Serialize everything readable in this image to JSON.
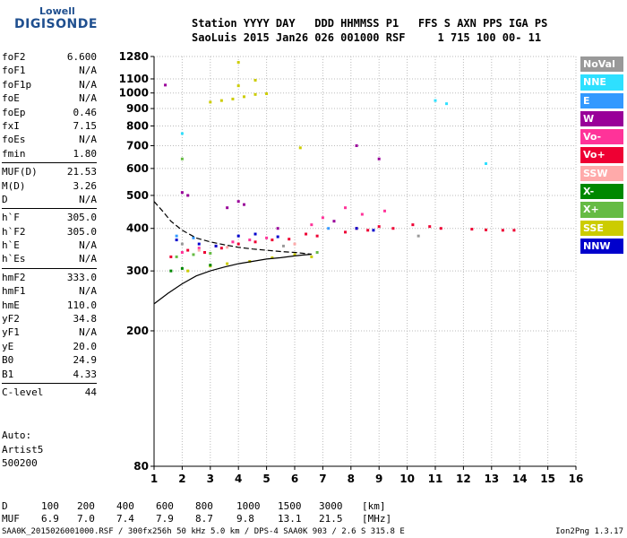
{
  "logo": {
    "line1": "Lowell",
    "line2": "DIGISONDE"
  },
  "header": {
    "line1": "Station YYYY DAY   DDD HHMMSS P1   FFS S AXN PPS IGA PS",
    "line2": "SaoLuis 2015 Jan26 026 001000 RSF     1 715 100 00- 11"
  },
  "params": {
    "group1": [
      {
        "label": "foF2",
        "value": "6.600"
      },
      {
        "label": "foF1",
        "value": "N/A"
      },
      {
        "label": "foF1p",
        "value": "N/A"
      },
      {
        "label": "foE",
        "value": "N/A"
      },
      {
        "label": "foEp",
        "value": "0.46"
      },
      {
        "label": "fxI",
        "value": "7.15"
      },
      {
        "label": "foEs",
        "value": "N/A"
      },
      {
        "label": "fmin",
        "value": "1.80"
      }
    ],
    "group2": [
      {
        "label": "MUF(D)",
        "value": "21.53"
      },
      {
        "label": "M(D)",
        "value": "3.26"
      },
      {
        "label": "D",
        "value": "N/A"
      }
    ],
    "group3": [
      {
        "label": "h`F",
        "value": "305.0"
      },
      {
        "label": "h`F2",
        "value": "305.0"
      },
      {
        "label": "h`E",
        "value": "N/A"
      },
      {
        "label": "h`Es",
        "value": "N/A"
      }
    ],
    "group4": [
      {
        "label": "hmF2",
        "value": "333.0"
      },
      {
        "label": "hmF1",
        "value": "N/A"
      },
      {
        "label": "hmE",
        "value": "110.0"
      },
      {
        "label": "yF2",
        "value": "34.8"
      },
      {
        "label": "yF1",
        "value": "N/A"
      },
      {
        "label": "yE",
        "value": "20.0"
      },
      {
        "label": "B0",
        "value": "24.9"
      },
      {
        "label": "B1",
        "value": "4.33"
      }
    ],
    "group5": [
      {
        "label": "C-level",
        "value": "44"
      }
    ]
  },
  "auto": {
    "line1": "Auto:",
    "line2": "Artist5",
    "line3": "500200"
  },
  "legend": [
    {
      "label": "NoVal",
      "color": "#999999"
    },
    {
      "label": "NNE",
      "color": "#2ee0ff"
    },
    {
      "label": "E",
      "color": "#3399ff"
    },
    {
      "label": "W",
      "color": "#990099"
    },
    {
      "label": "Vo-",
      "color": "#ff3399"
    },
    {
      "label": "Vo+",
      "color": "#ee0033"
    },
    {
      "label": "SSW",
      "color": "#ffaaaa"
    },
    {
      "label": "X-",
      "color": "#008800"
    },
    {
      "label": "X+",
      "color": "#66bb44"
    },
    {
      "label": "SSE",
      "color": "#cccc00"
    },
    {
      "label": "NNW",
      "color": "#0000cc"
    }
  ],
  "muf_table": {
    "d_label": "D",
    "d_values": [
      "100",
      "200",
      "400",
      "600",
      "800",
      "1000",
      "1500",
      "3000",
      "[km]"
    ],
    "muf_label": "MUF",
    "muf_values": [
      "6.9",
      "7.0",
      "7.4",
      "7.9",
      "8.7",
      "9.8",
      "13.1",
      "21.5",
      "[MHz]"
    ]
  },
  "footer": "SAA0K_2015026001000.RSF / 300fx256h 50 kHz 5.0 km / DPS-4 SAA0K 903 / 2.6 S 315.8 E",
  "version": "Ion2Png 1.3.17",
  "chart_data": {
    "type": "scatter",
    "title": "",
    "xlabel": "",
    "ylabel": "",
    "xlim": [
      1,
      16
    ],
    "x_ticks": [
      1,
      2,
      3,
      4,
      5,
      6,
      7,
      8,
      9,
      10,
      11,
      12,
      13,
      14,
      15,
      16
    ],
    "y_scale": "log",
    "ylim": [
      80,
      1280
    ],
    "y_ticks": [
      80,
      200,
      300,
      400,
      500,
      600,
      700,
      800,
      900,
      1000,
      1100,
      1280
    ],
    "grid": true,
    "series": [
      {
        "name": "Vo+",
        "color": "#ee0033",
        "points": [
          [
            1.6,
            330
          ],
          [
            2.2,
            345
          ],
          [
            2.8,
            340
          ],
          [
            3.4,
            350
          ],
          [
            4.0,
            360
          ],
          [
            4.6,
            365
          ],
          [
            5.2,
            370
          ],
          [
            5.8,
            372
          ],
          [
            6.4,
            385
          ],
          [
            6.8,
            380
          ],
          [
            7.8,
            390
          ],
          [
            8.2,
            400
          ],
          [
            8.6,
            395
          ],
          [
            9.0,
            405
          ],
          [
            9.5,
            400
          ],
          [
            10.2,
            410
          ],
          [
            10.8,
            405
          ],
          [
            11.2,
            400
          ],
          [
            12.3,
            398
          ],
          [
            12.8,
            396
          ],
          [
            13.4,
            395
          ],
          [
            13.8,
            395
          ]
        ]
      },
      {
        "name": "Vo-",
        "color": "#ff3399",
        "points": [
          [
            2.0,
            340
          ],
          [
            2.6,
            350
          ],
          [
            3.2,
            355
          ],
          [
            3.8,
            365
          ],
          [
            4.4,
            370
          ],
          [
            5.0,
            375
          ],
          [
            6.6,
            410
          ],
          [
            7.0,
            430
          ],
          [
            7.8,
            460
          ],
          [
            8.4,
            440
          ],
          [
            9.2,
            450
          ]
        ]
      },
      {
        "name": "W",
        "color": "#990099",
        "points": [
          [
            1.4,
            1055
          ],
          [
            2.0,
            510
          ],
          [
            2.2,
            500
          ],
          [
            3.6,
            460
          ],
          [
            4.0,
            480
          ],
          [
            4.2,
            470
          ],
          [
            5.4,
            400
          ],
          [
            7.4,
            420
          ],
          [
            8.2,
            700
          ],
          [
            9.0,
            640
          ]
        ]
      },
      {
        "name": "NNE",
        "color": "#2ee0ff",
        "points": [
          [
            2.0,
            760
          ],
          [
            11.0,
            950
          ],
          [
            11.4,
            930
          ],
          [
            12.8,
            620
          ]
        ]
      },
      {
        "name": "SSE",
        "color": "#cccc00",
        "points": [
          [
            3.0,
            940
          ],
          [
            3.4,
            950
          ],
          [
            3.8,
            960
          ],
          [
            4.2,
            975
          ],
          [
            4.6,
            990
          ],
          [
            5.0,
            995
          ],
          [
            2.2,
            300
          ],
          [
            3.0,
            310
          ],
          [
            3.6,
            315
          ],
          [
            4.4,
            320
          ],
          [
            5.2,
            328
          ],
          [
            6.0,
            335
          ],
          [
            6.6,
            330
          ],
          [
            4.0,
            1050
          ],
          [
            4.6,
            1090
          ],
          [
            4.0,
            1230
          ],
          [
            6.2,
            690
          ]
        ]
      },
      {
        "name": "X+",
        "color": "#66bb44",
        "points": [
          [
            1.8,
            330
          ],
          [
            2.4,
            335
          ],
          [
            3.0,
            338
          ],
          [
            6.8,
            340
          ],
          [
            2.0,
            640
          ]
        ]
      },
      {
        "name": "X-",
        "color": "#008800",
        "points": [
          [
            1.6,
            300
          ],
          [
            2.0,
            305
          ],
          [
            3.0,
            312
          ]
        ]
      },
      {
        "name": "NNW",
        "color": "#0000cc",
        "points": [
          [
            1.8,
            370
          ],
          [
            2.6,
            360
          ],
          [
            3.2,
            355
          ],
          [
            4.0,
            380
          ],
          [
            4.6,
            385
          ],
          [
            5.4,
            378
          ],
          [
            8.2,
            400
          ],
          [
            8.8,
            395
          ]
        ]
      },
      {
        "name": "E",
        "color": "#3399ff",
        "points": [
          [
            1.8,
            380
          ],
          [
            2.4,
            375
          ],
          [
            7.2,
            400
          ]
        ]
      },
      {
        "name": "SSW",
        "color": "#ffaaaa",
        "points": [
          [
            2.6,
            345
          ],
          [
            3.6,
            352
          ],
          [
            6.0,
            360
          ]
        ]
      },
      {
        "name": "NoVal",
        "color": "#999999",
        "points": [
          [
            2.0,
            360
          ],
          [
            5.6,
            355
          ],
          [
            10.4,
            380
          ]
        ]
      }
    ],
    "profile_solid": {
      "x": [
        1.0,
        1.5,
        2.0,
        2.5,
        3.0,
        3.5,
        4.0,
        4.5,
        5.0,
        5.5,
        6.0,
        6.3,
        6.5,
        6.6
      ],
      "y": [
        240,
        258,
        275,
        290,
        300,
        308,
        315,
        320,
        325,
        328,
        332,
        334,
        335,
        336
      ]
    },
    "profile_dashed": {
      "x": [
        1.0,
        1.3,
        1.6,
        2.0,
        2.5,
        3.0,
        3.5,
        4.0,
        4.5,
        5.0,
        5.5,
        6.0,
        6.3,
        6.6
      ],
      "y": [
        480,
        450,
        420,
        395,
        375,
        365,
        358,
        352,
        348,
        345,
        342,
        340,
        338,
        336
      ]
    }
  }
}
